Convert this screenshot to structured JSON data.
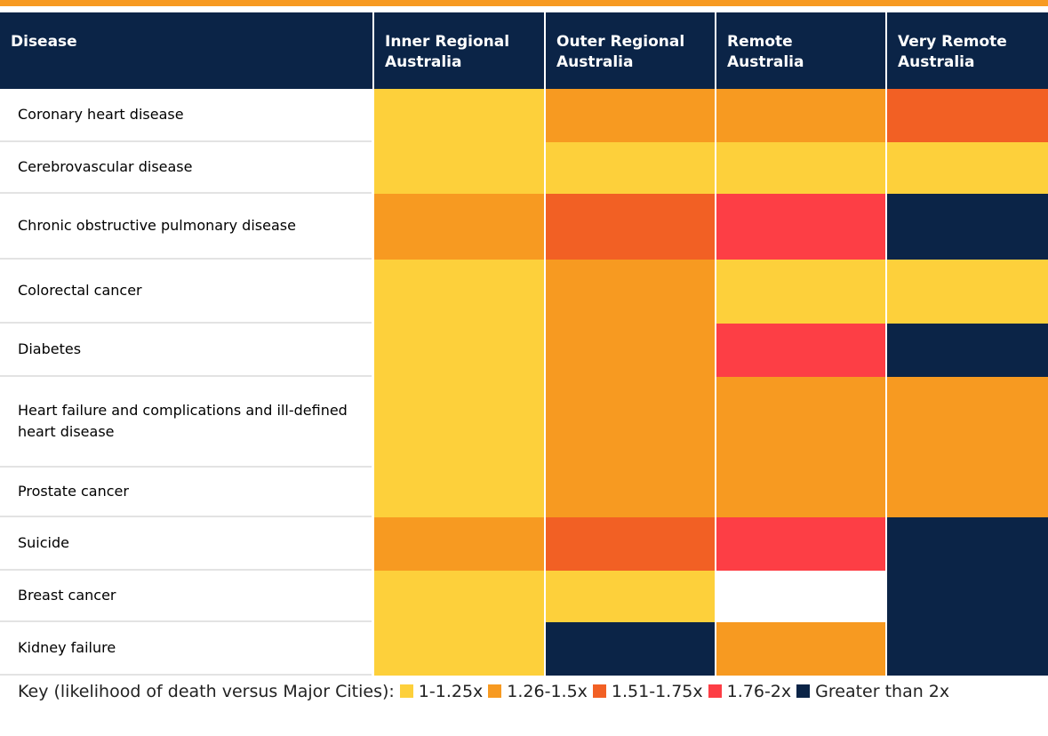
{
  "table": {
    "header": [
      "Disease",
      "Inner Regional Australia",
      "Outer Regional Australia",
      "Remote Australia",
      "Very Remote Australia"
    ],
    "rows": [
      {
        "disease": "Coronary heart disease",
        "cells": [
          "#fdd03b",
          "#f79a21",
          "#f79a21",
          "#f26024"
        ]
      },
      {
        "disease": "Cerebrovascular disease",
        "cells": [
          "#fdd03b",
          "#fdd03b",
          "#fdd03b",
          "#fdd03b"
        ]
      },
      {
        "disease": "Chronic obstructive pulmonary disease",
        "cells": [
          "#f79a21",
          "#f26024",
          "#fd3e45",
          "#0b2447"
        ]
      },
      {
        "disease": "Colorectal cancer",
        "cells": [
          "#fdd03b",
          "#f79a21",
          "#fdd03b",
          "#fdd03b"
        ]
      },
      {
        "disease": "Diabetes",
        "cells": [
          "#fdd03b",
          "#f79a21",
          "#fd3e45",
          "#0b2447"
        ]
      },
      {
        "disease": "Heart failure and complications and ill-defined heart disease",
        "cells": [
          "#fdd03b",
          "#f79a21",
          "#f79a21",
          "#f79a21"
        ]
      },
      {
        "disease": "Prostate cancer",
        "cells": [
          "#fdd03b",
          "#f79a21",
          "#f79a21",
          "#f79a21"
        ]
      },
      {
        "disease": "Suicide",
        "cells": [
          "#f79a21",
          "#f26024",
          "#fd3e45",
          "#0b2447"
        ]
      },
      {
        "disease": "Breast cancer",
        "cells": [
          "#fdd03b",
          "#fdd03b",
          null,
          "#0b2447"
        ]
      },
      {
        "disease": "Kidney failure",
        "cells": [
          "#fdd03b",
          "#0b2447",
          "#f79a21",
          "#0b2447"
        ]
      }
    ]
  },
  "key": {
    "title": "Key (likelihood of death versus Major Cities):",
    "items": [
      {
        "label": "1-1.25x",
        "color": "#fdd03b"
      },
      {
        "label": "1.26-1.5x",
        "color": "#f79a21"
      },
      {
        "label": "1.51-1.75x",
        "color": "#f26024"
      },
      {
        "label": "1.76-2x",
        "color": "#fd3e45"
      },
      {
        "label": "Greater than 2x",
        "color": "#0b2447"
      }
    ]
  }
}
